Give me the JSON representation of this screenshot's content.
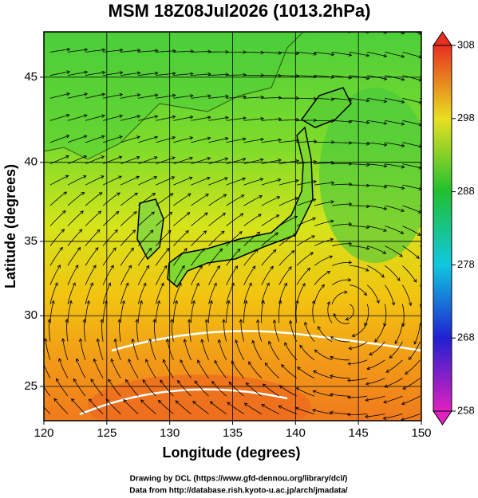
{
  "chart_data": {
    "type": "map",
    "title": "MSM 18Z08Jul2026 (1013.2hPa)",
    "xlabel": "Longitude (degrees)",
    "ylabel": "Latitude  (degrees)",
    "xlim": [
      120,
      150
    ],
    "xticks": [
      120,
      125,
      130,
      135,
      140,
      145,
      150
    ],
    "ylim": [
      22.5,
      47.5
    ],
    "yticks": [
      25,
      30,
      35,
      40,
      45
    ],
    "projection": "mercator",
    "grid": true,
    "colorbar": {
      "lim": [
        258,
        308
      ],
      "ticks": [
        258,
        268,
        278,
        288,
        298,
        308
      ]
    },
    "credits": [
      "Drawing by DCL (https://www.gfd-dennou.org/library/dcl/)",
      "Data from http://database.rish.kyoto-u.ac.jp/arch/jmadata/"
    ]
  }
}
